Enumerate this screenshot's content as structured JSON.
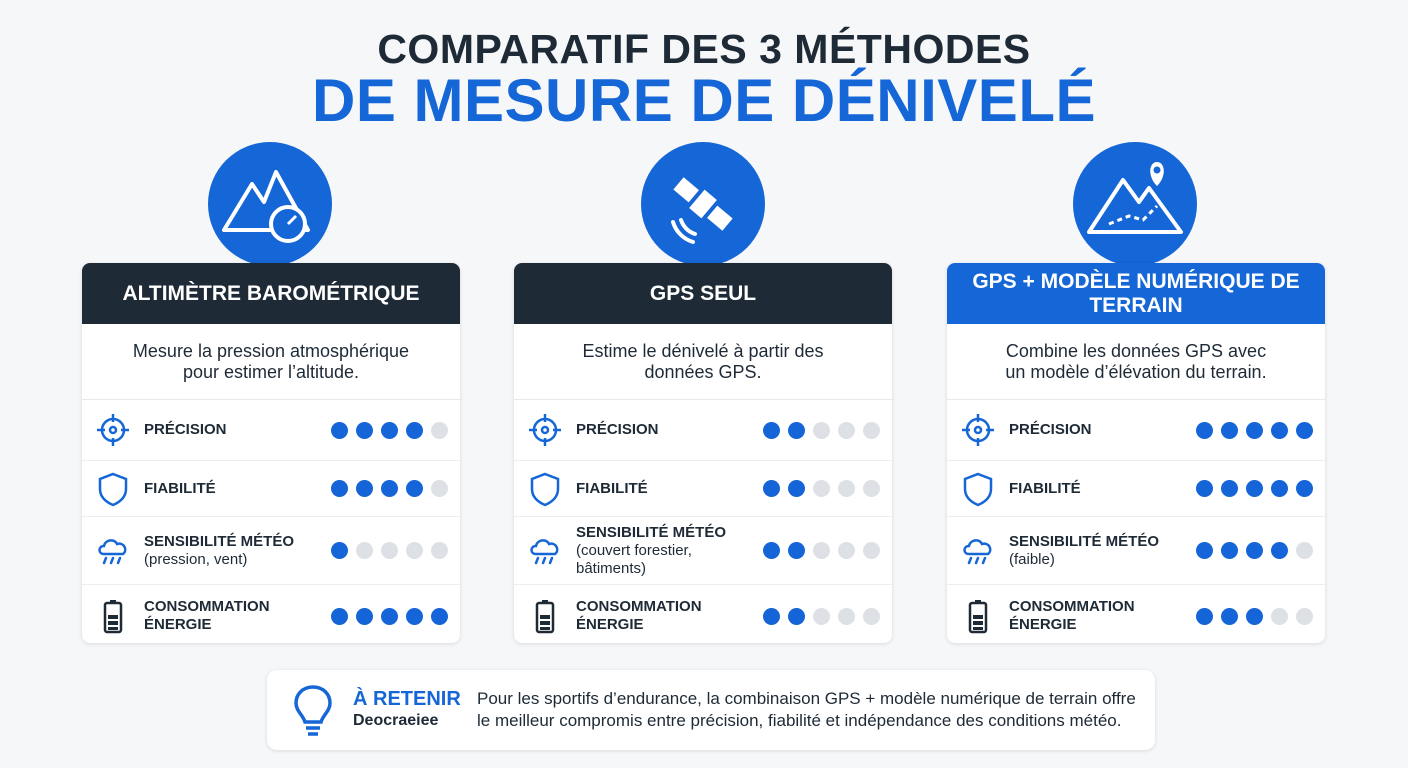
{
  "header": {
    "title_line1": "COMPARATIF DES 3 MÉTHODES",
    "title_line2": "DE MESURE DE DÉNIVELÉ"
  },
  "rating_scale": 5,
  "filled_color": "#1565d8",
  "empty_color": "#dde0e5",
  "cards": [
    {
      "title": "ALTIMÈTRE BAROMÉTRIQUE",
      "header_color": "#1e2a36",
      "description": "Mesure la pression atmosphérique pour estimer l’altitude.",
      "criteria": [
        {
          "label": "PRÉCISION",
          "rating": 4
        },
        {
          "label": "FIABILITÉ",
          "rating": 4
        },
        {
          "label": "SENSIBILITÉ MÉTÉO",
          "note": "(pression, vent)",
          "rating": 1
        },
        {
          "label": "CONSOMMATION ÉNERGIE",
          "rating": 5
        }
      ]
    },
    {
      "title": "GPS SEUL",
      "header_color": "#1e2a36",
      "description": "Estime le dénivelé à partir des données GPS.",
      "criteria": [
        {
          "label": "PRÉCISION",
          "rating": 2
        },
        {
          "label": "FIABILITÉ",
          "rating": 2
        },
        {
          "label": "SENSIBILITÉ MÉTÉO",
          "note": "(couvert forestier, bâtiments)",
          "rating": 2
        },
        {
          "label": "CONSOMMATION ÉNERGIE",
          "rating": 2
        }
      ]
    },
    {
      "title": "GPS + MODÈLE NUMÉRIQUE DE TERRAIN",
      "header_color": "#1566d6",
      "description": "Combine les données GPS avec un modèle d’élévation du terrain.",
      "criteria": [
        {
          "label": "PRÉCISION",
          "rating": 5
        },
        {
          "label": "FIABILITÉ",
          "rating": 5
        },
        {
          "label": "SENSIBILITÉ MÉTÉO",
          "note": "(faible)",
          "rating": 4
        },
        {
          "label": "CONSOMMATION ÉNERGIE",
          "rating": 3
        }
      ]
    }
  ],
  "takeaway": {
    "title": "À RETENIR",
    "subtitle": "Deocraeiee",
    "text": "Pour les sportifs d’endurance, la combinaison GPS + modèle numérique de terrain offre le meilleur compromis entre précision, fiabilité et indépendance des conditions météo."
  }
}
